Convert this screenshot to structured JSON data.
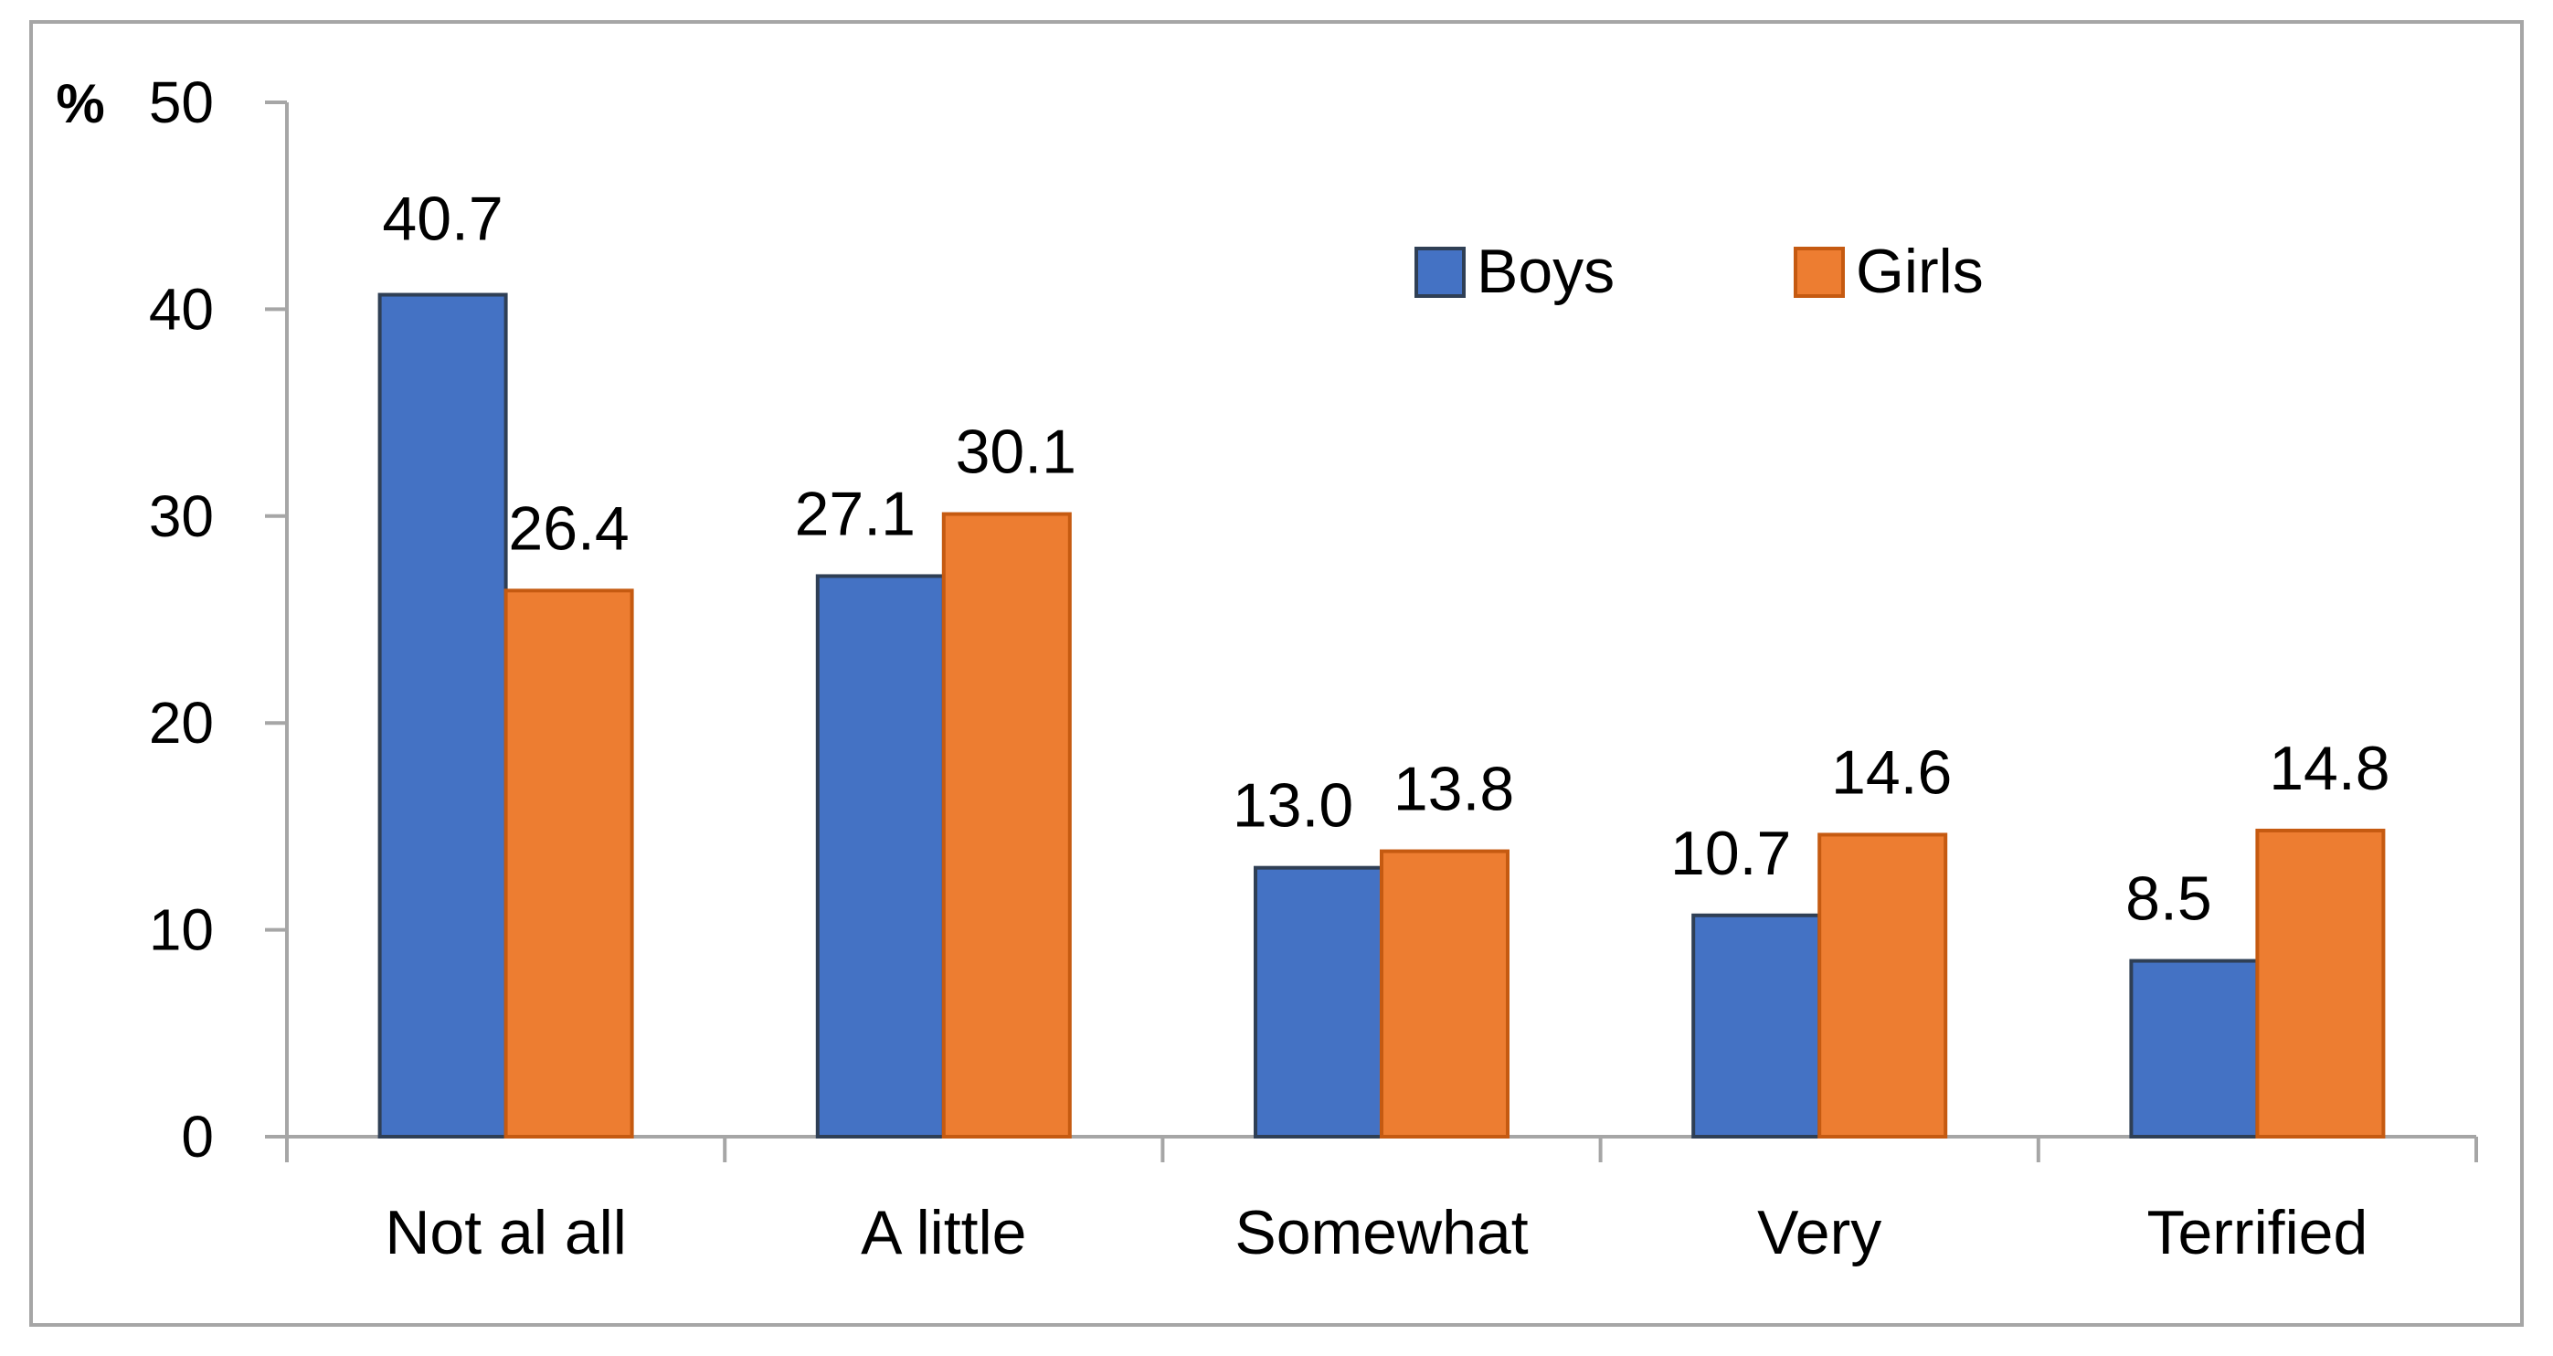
{
  "chart_data": {
    "type": "bar",
    "title": "",
    "ylabel": "%",
    "xlabel": "",
    "ylim": [
      0,
      50
    ],
    "yticks": [
      0,
      10,
      20,
      30,
      40,
      50
    ],
    "categories": [
      "Not al all",
      "A little",
      "Somewhat",
      "Very",
      "Terrified"
    ],
    "series": [
      {
        "name": "Boys",
        "values": [
          40.7,
          27.1,
          13.0,
          10.7,
          8.5
        ],
        "labels": [
          "40.7",
          "27.1",
          "13.0",
          "10.7",
          "8.5"
        ],
        "color": "#4472C4",
        "edge": "#2F3F55"
      },
      {
        "name": "Girls",
        "values": [
          26.4,
          30.1,
          13.8,
          14.6,
          14.8
        ],
        "labels": [
          "26.4",
          "30.1",
          "13.8",
          "14.6",
          "14.8"
        ],
        "color": "#ED7D31",
        "edge": "#C55A11"
      }
    ],
    "legend_position": "top-right",
    "grid": false
  }
}
